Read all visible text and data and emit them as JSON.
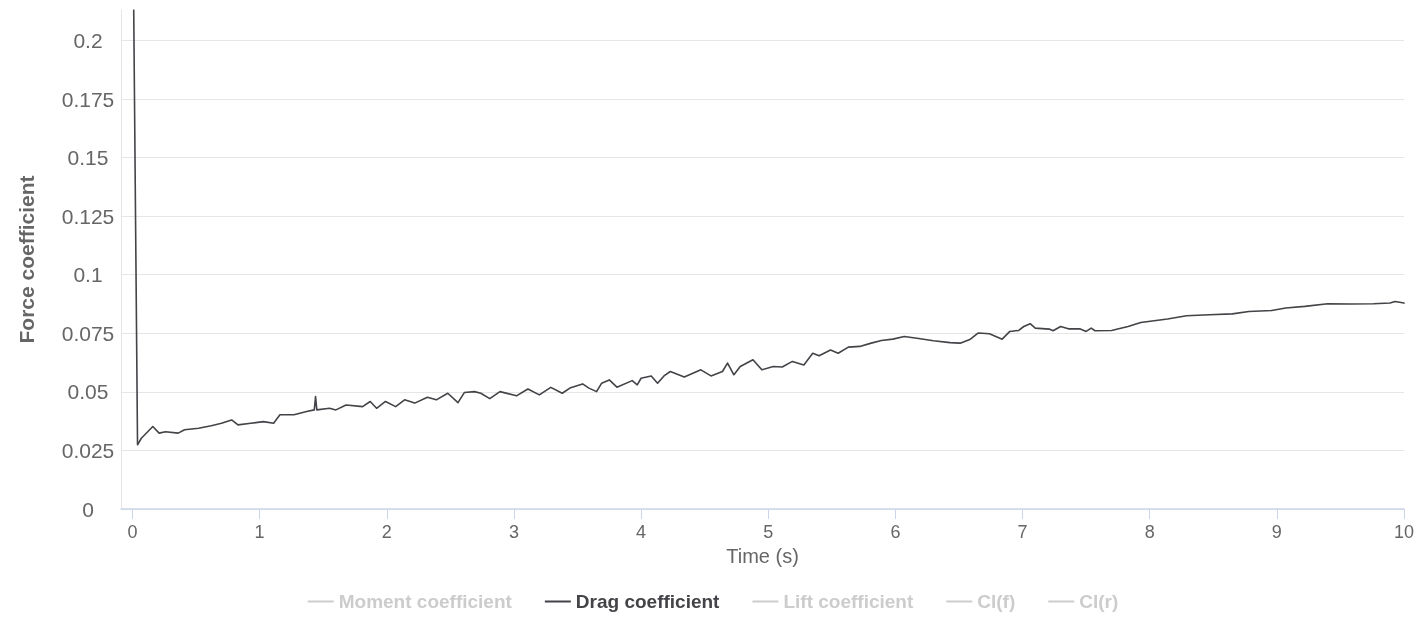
{
  "chart_data": {
    "type": "line",
    "xlabel": "Time (s)",
    "ylabel": "Force coefficient",
    "xlim": [
      -0.09,
      10
    ],
    "xticks": [
      0,
      1,
      2,
      3,
      4,
      5,
      6,
      7,
      8,
      9,
      10
    ],
    "ylim": [
      0,
      0.213
    ],
    "yticks": [
      0,
      0.025,
      0.05,
      0.075,
      0.1,
      0.125,
      0.15,
      0.175,
      0.2
    ],
    "grid": "y",
    "legend": "bottom",
    "series": [
      {
        "name": "Moment coefficient",
        "color": "#cccccc"
      },
      {
        "name": "Drag coefficient",
        "color": "#434348",
        "x": [
          0.01,
          0.04,
          0.07,
          0.12,
          0.16,
          0.21,
          0.26,
          0.36,
          0.41,
          0.52,
          0.62,
          0.7,
          0.78,
          0.83,
          0.93,
          1.03,
          1.11,
          1.16,
          1.27,
          1.37,
          1.43,
          1.44,
          1.45,
          1.55,
          1.6,
          1.68,
          1.81,
          1.87,
          1.92,
          1.99,
          2.07,
          2.14,
          2.22,
          2.32,
          2.39,
          2.48,
          2.56,
          2.61,
          2.69,
          2.74,
          2.81,
          2.89,
          3.02,
          3.11,
          3.2,
          3.29,
          3.38,
          3.44,
          3.54,
          3.59,
          3.65,
          3.69,
          3.75,
          3.81,
          3.93,
          3.97,
          4.0,
          4.08,
          4.13,
          4.18,
          4.23,
          4.34,
          4.47,
          4.55,
          4.64,
          4.68,
          4.73,
          4.78,
          4.88,
          4.95,
          5.04,
          5.11,
          5.19,
          5.28,
          5.35,
          5.4,
          5.49,
          5.55,
          5.63,
          5.72,
          5.81,
          5.89,
          5.98,
          6.07,
          6.17,
          6.3,
          6.43,
          6.51,
          6.59,
          6.65,
          6.74,
          6.84,
          6.9,
          6.97,
          7.01,
          7.06,
          7.1,
          7.21,
          7.24,
          7.3,
          7.36,
          7.45,
          7.5,
          7.54,
          7.57,
          7.7,
          7.83,
          7.93,
          8.14,
          8.29,
          8.47,
          8.65,
          8.78,
          8.96,
          9.07,
          9.22,
          9.4,
          9.58,
          9.76,
          9.89,
          9.93,
          10.0
        ],
        "values": [
          0.213,
          0.0274,
          0.0302,
          0.033,
          0.0352,
          0.0324,
          0.033,
          0.0324,
          0.0338,
          0.0345,
          0.0355,
          0.0366,
          0.038,
          0.0359,
          0.0366,
          0.0373,
          0.0366,
          0.0402,
          0.0402,
          0.0416,
          0.0423,
          0.048,
          0.0423,
          0.043,
          0.0423,
          0.0444,
          0.0437,
          0.0459,
          0.043,
          0.0459,
          0.0437,
          0.0466,
          0.0452,
          0.0477,
          0.0466,
          0.0494,
          0.0454,
          0.0497,
          0.0501,
          0.0494,
          0.0471,
          0.0501,
          0.0483,
          0.0512,
          0.0487,
          0.0519,
          0.0494,
          0.0516,
          0.0534,
          0.0516,
          0.0501,
          0.0537,
          0.0551,
          0.052,
          0.0548,
          0.053,
          0.0558,
          0.0568,
          0.0537,
          0.0568,
          0.0587,
          0.0563,
          0.0594,
          0.0568,
          0.0587,
          0.0623,
          0.0573,
          0.0608,
          0.0637,
          0.0594,
          0.0608,
          0.0606,
          0.063,
          0.0615,
          0.0665,
          0.0654,
          0.0679,
          0.0665,
          0.0691,
          0.0694,
          0.0708,
          0.0719,
          0.0725,
          0.0736,
          0.0729,
          0.0718,
          0.071,
          0.0708,
          0.0725,
          0.0751,
          0.0748,
          0.0725,
          0.0758,
          0.0762,
          0.0779,
          0.0791,
          0.0772,
          0.0768,
          0.0761,
          0.0779,
          0.0769,
          0.0769,
          0.0758,
          0.0772,
          0.0761,
          0.0762,
          0.0779,
          0.0796,
          0.0811,
          0.0825,
          0.0829,
          0.0833,
          0.0843,
          0.0847,
          0.0858,
          0.0865,
          0.0876,
          0.0875,
          0.0876,
          0.0879,
          0.0886,
          0.0879
        ]
      },
      {
        "name": "Lift coefficient",
        "color": "#cccccc"
      },
      {
        "name": "Cl(f)",
        "color": "#cccccc"
      },
      {
        "name": "Cl(r)",
        "color": "#cccccc"
      }
    ]
  }
}
